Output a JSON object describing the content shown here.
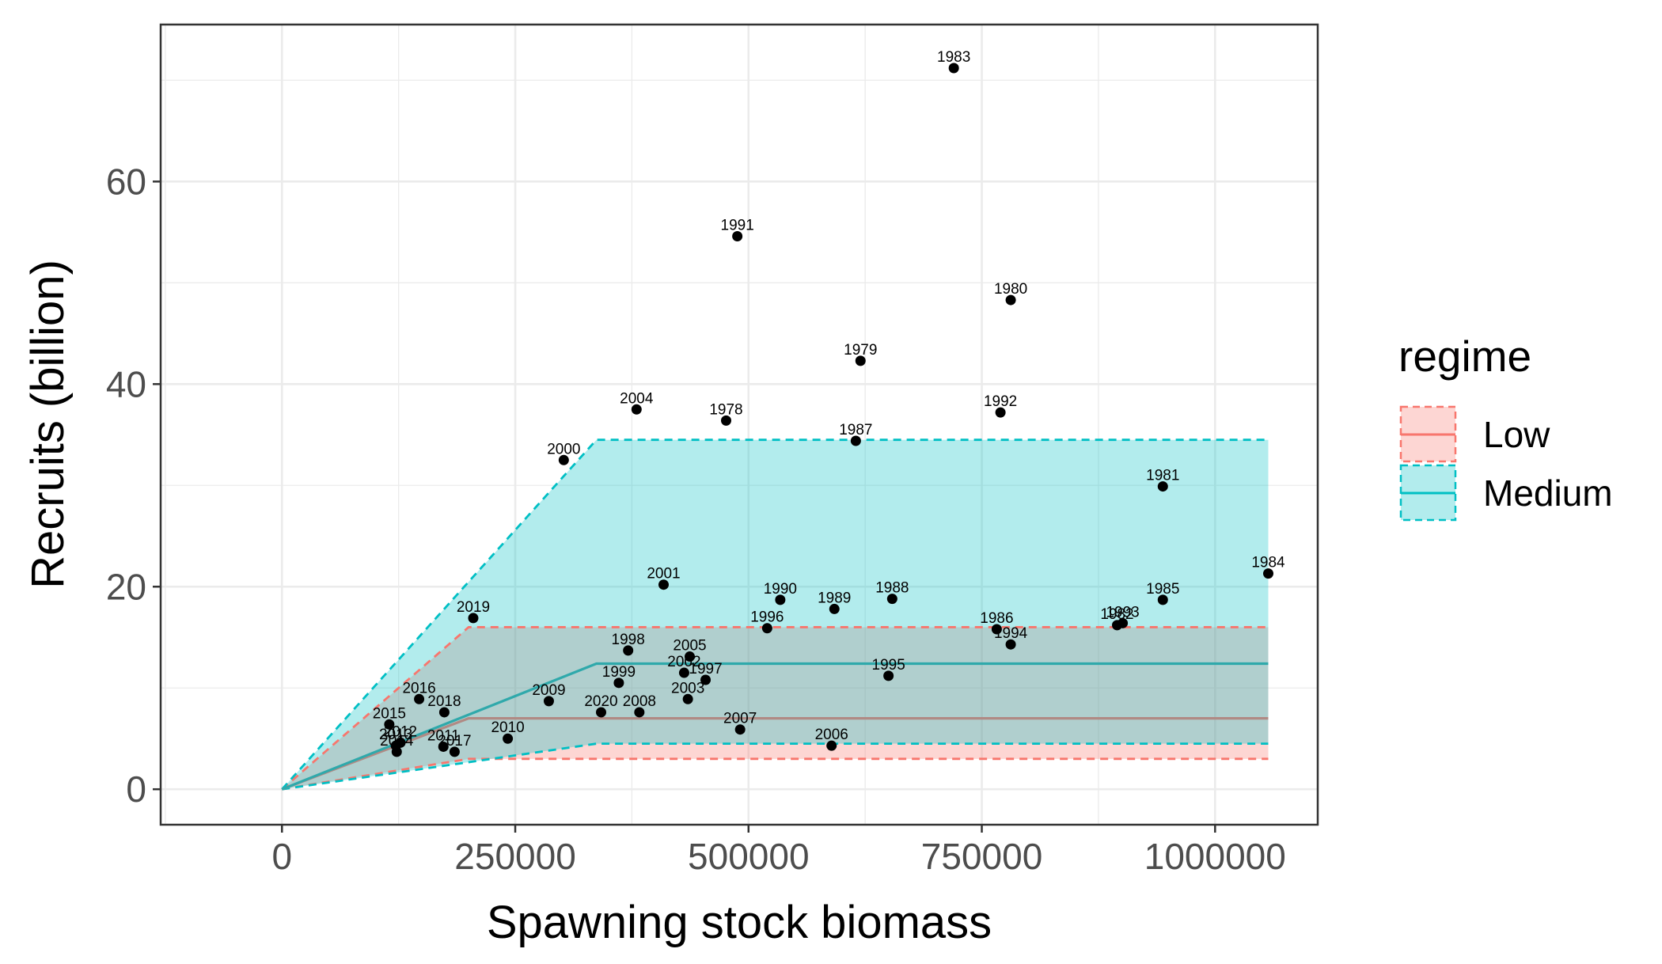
{
  "chart_data": {
    "type": "scatter",
    "xlabel": "Spawning stock biomass",
    "ylabel": "Recruits (billion)",
    "xlim": [
      -130000,
      1110000
    ],
    "ylim": [
      -3.5,
      75.5
    ],
    "x_ticks": [
      0,
      250000,
      500000,
      750000,
      1000000
    ],
    "x_tick_labels": [
      "0",
      "250000",
      "500000",
      "750000",
      "1000000"
    ],
    "y_ticks": [
      0,
      20,
      40,
      60
    ],
    "y_tick_labels": [
      "0",
      "20",
      "40",
      "60"
    ],
    "grid": true,
    "legend": {
      "title": "regime",
      "placement": "right",
      "entries": [
        {
          "label": "Low",
          "color": "#F8766D"
        },
        {
          "label": "Medium",
          "color": "#00BFC4"
        }
      ]
    },
    "regimes": [
      {
        "name": "Low",
        "color": "#F8766D",
        "breakpoint_x": 200000,
        "max_x": 1057000,
        "median": 7,
        "lower": 3,
        "upper": 16
      },
      {
        "name": "Medium",
        "color": "#00BFC4",
        "breakpoint_x": 337000,
        "max_x": 1057000,
        "median": 12.4,
        "lower": 4.5,
        "upper": 34.5
      }
    ],
    "points": [
      {
        "year": "1978",
        "x": 476000,
        "y": 36.4
      },
      {
        "year": "1979",
        "x": 620000,
        "y": 42.3
      },
      {
        "year": "1980",
        "x": 781000,
        "y": 48.3
      },
      {
        "year": "1981",
        "x": 944000,
        "y": 29.9
      },
      {
        "year": "1982",
        "x": 895000,
        "y": 16.2
      },
      {
        "year": "1983",
        "x": 720000,
        "y": 71.2
      },
      {
        "year": "1984",
        "x": 1057000,
        "y": 21.3
      },
      {
        "year": "1985",
        "x": 944000,
        "y": 18.7
      },
      {
        "year": "1986",
        "x": 766000,
        "y": 15.8
      },
      {
        "year": "1987",
        "x": 615000,
        "y": 34.4
      },
      {
        "year": "1988",
        "x": 654000,
        "y": 18.8
      },
      {
        "year": "1989",
        "x": 592000,
        "y": 17.8
      },
      {
        "year": "1990",
        "x": 534000,
        "y": 18.7
      },
      {
        "year": "1991",
        "x": 488000,
        "y": 54.6
      },
      {
        "year": "1992",
        "x": 770000,
        "y": 37.2
      },
      {
        "year": "1993",
        "x": 901000,
        "y": 16.4
      },
      {
        "year": "1994",
        "x": 781000,
        "y": 14.3
      },
      {
        "year": "1995",
        "x": 650000,
        "y": 11.2
      },
      {
        "year": "1996",
        "x": 520000,
        "y": 15.9
      },
      {
        "year": "1997",
        "x": 454000,
        "y": 10.8
      },
      {
        "year": "1998",
        "x": 371000,
        "y": 13.7
      },
      {
        "year": "1999",
        "x": 361000,
        "y": 10.5
      },
      {
        "year": "2000",
        "x": 302000,
        "y": 32.5
      },
      {
        "year": "2001",
        "x": 409000,
        "y": 20.2
      },
      {
        "year": "2002",
        "x": 431000,
        "y": 11.5
      },
      {
        "year": "2003",
        "x": 435000,
        "y": 8.9
      },
      {
        "year": "2004",
        "x": 380000,
        "y": 37.5
      },
      {
        "year": "2005",
        "x": 437000,
        "y": 13.1
      },
      {
        "year": "2006",
        "x": 589000,
        "y": 4.3
      },
      {
        "year": "2007",
        "x": 491000,
        "y": 5.9
      },
      {
        "year": "2008",
        "x": 383000,
        "y": 7.6
      },
      {
        "year": "2009",
        "x": 286000,
        "y": 8.7
      },
      {
        "year": "2010",
        "x": 242000,
        "y": 5.0
      },
      {
        "year": "2011",
        "x": 173000,
        "y": 4.2
      },
      {
        "year": "2012",
        "x": 127000,
        "y": 4.6
      },
      {
        "year": "2013",
        "x": 122000,
        "y": 4.3
      },
      {
        "year": "2014",
        "x": 123000,
        "y": 3.7
      },
      {
        "year": "2015",
        "x": 115000,
        "y": 6.4
      },
      {
        "year": "2016",
        "x": 147000,
        "y": 8.9
      },
      {
        "year": "2017",
        "x": 185000,
        "y": 3.7
      },
      {
        "year": "2018",
        "x": 174000,
        "y": 7.6
      },
      {
        "year": "2019",
        "x": 205000,
        "y": 16.9
      },
      {
        "year": "2020",
        "x": 342000,
        "y": 7.6
      }
    ]
  }
}
